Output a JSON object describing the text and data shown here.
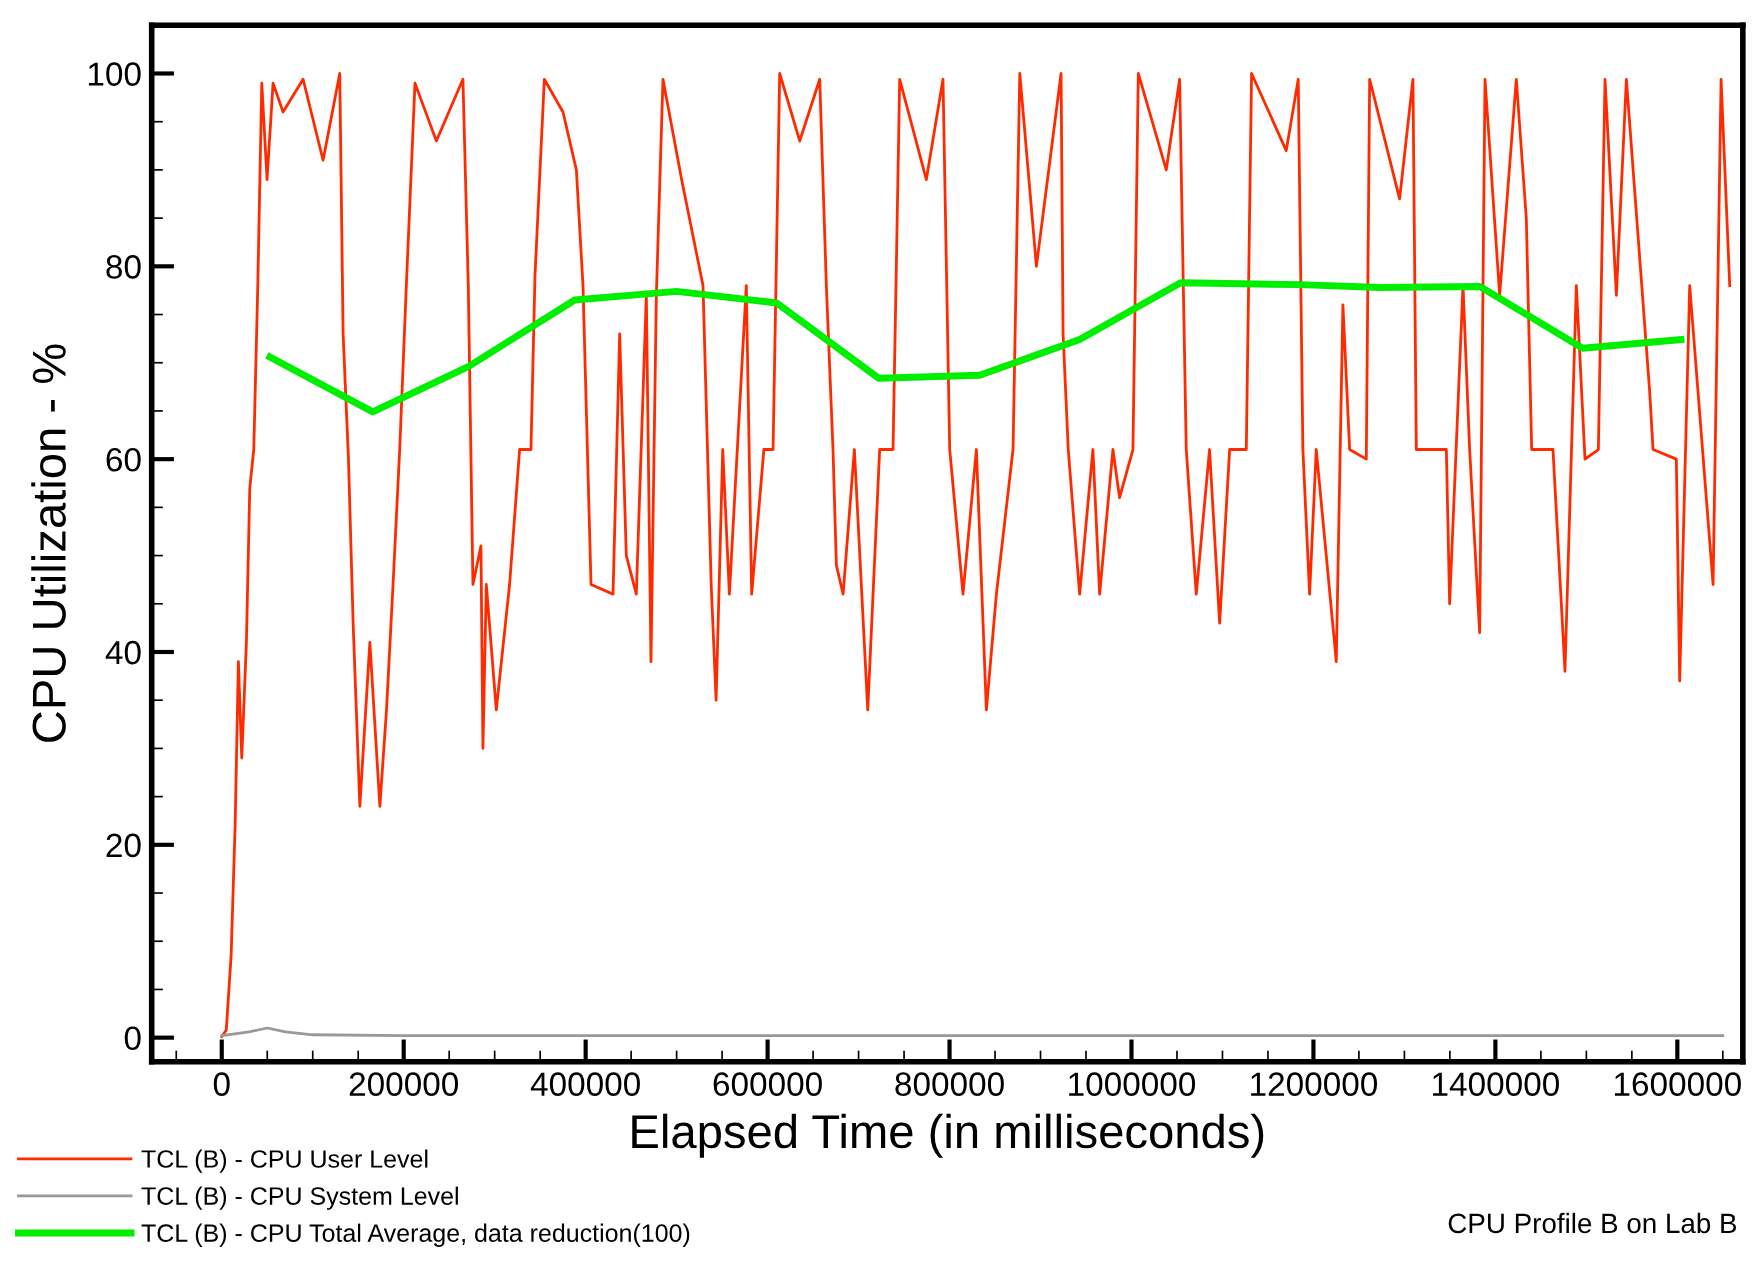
{
  "chart_data": {
    "type": "line",
    "xlabel": "Elapsed Time (in milliseconds)",
    "ylabel": "CPU Utilization - %",
    "annotations": [
      "CPU Profile B on Lab B"
    ],
    "xlim": [
      -77000,
      1672000
    ],
    "xticks": [
      0,
      200000,
      400000,
      600000,
      800000,
      1000000,
      1200000,
      1400000,
      1600000
    ],
    "ylim": [
      -2.5,
      105
    ],
    "yticks": [
      0,
      20,
      40,
      60,
      80,
      100
    ],
    "grid": false,
    "legend": "bottom left",
    "marker": "none",
    "line_style": "solid",
    "series": [
      {
        "name": "TCL (B) - CPU User Level",
        "color": "#ff2a00",
        "x": [
          0,
          5000,
          10300,
          14700,
          18300,
          22000,
          27100,
          30800,
          35200,
          39600,
          44000,
          49800,
          56400,
          67400,
          89400,
          111400,
          129700,
          133400,
          139300,
          144400,
          151800,
          162800,
          173800,
          181100,
          188300,
          195600,
          202900,
          212400,
          235900,
          265100,
          271000,
          276100,
          284900,
          287100,
          290800,
          301800,
          316400,
          327400,
          339900,
          344300,
          354600,
          375100,
          389800,
          397100,
          405900,
          430100,
          437400,
          444700,
          455700,
          466700,
          471800,
          477700,
          485000,
          505500,
          529000,
          538000,
          543400,
          550700,
          558000,
          576600,
          582500,
          595900,
          606000,
          613300,
          635300,
          657300,
          664600,
          671900,
          675600,
          683000,
          695400,
          710100,
          723200,
          737900,
          745200,
          774500,
          792800,
          800200,
          814800,
          829500,
          840500,
          851500,
          869800,
          877200,
          895500,
          922600,
          924800,
          930500,
          943000,
          957600,
          965000,
          979600,
          986900,
          1001600,
          1007500,
          1038200,
          1052900,
          1060200,
          1071200,
          1085800,
          1096900,
          1107900,
          1126200,
          1132000,
          1170100,
          1183300,
          1188400,
          1195800,
          1203100,
          1225100,
          1232400,
          1239800,
          1258100,
          1261800,
          1294700,
          1309400,
          1313100,
          1346100,
          1349700,
          1364400,
          1371700,
          1382700,
          1388600,
          1404700,
          1423000,
          1434000,
          1439900,
          1463300,
          1476500,
          1489000,
          1498500,
          1513200,
          1520500,
          1533000,
          1544000,
          1569600,
          1573300,
          1598900,
          1602600,
          1613600,
          1639300,
          1648100,
          1657600
        ],
        "values": [
          0.1,
          0.8,
          8.5,
          22,
          39,
          29,
          41,
          57,
          61,
          78,
          99,
          89,
          99,
          96,
          99.4,
          91,
          100,
          73,
          60,
          43,
          24,
          41,
          24,
          34,
          47,
          61,
          78,
          99,
          93,
          99.4,
          78,
          47,
          51,
          30,
          47,
          34,
          47,
          61,
          61,
          79,
          99.4,
          96,
          90,
          78,
          47,
          46,
          73,
          50,
          46,
          77,
          39,
          77,
          99.4,
          89,
          78,
          47,
          35,
          61,
          46,
          78,
          46,
          61,
          61,
          100,
          93,
          99.4,
          78,
          61,
          49,
          46,
          61,
          34,
          61,
          61,
          99.4,
          89,
          99.4,
          61,
          46,
          61,
          34,
          46,
          61,
          100,
          80,
          100,
          73,
          61,
          46,
          61,
          46,
          61,
          56,
          61,
          100,
          90,
          99.4,
          61,
          46,
          61,
          43,
          61,
          61,
          100,
          92,
          99.4,
          61,
          46,
          61,
          39,
          76,
          61,
          60,
          99.4,
          87,
          99.4,
          61,
          61,
          45,
          78,
          61,
          42,
          99.4,
          77,
          99.4,
          85,
          61,
          61,
          38,
          78,
          60,
          61,
          99.4,
          77,
          99.4,
          67,
          61,
          60,
          37,
          78,
          47,
          99.4,
          78
        ]
      },
      {
        "name": "TCL (B) - CPU System Level",
        "color": "#999999",
        "x": [
          0,
          30000,
          50000,
          70000,
          100000,
          200000,
          400000,
          600000,
          800000,
          1000000,
          1200000,
          1400000,
          1650000
        ],
        "values": [
          0.2,
          0.6,
          1.0,
          0.6,
          0.3,
          0.2,
          0.2,
          0.2,
          0.2,
          0.2,
          0.2,
          0.2,
          0.2
        ]
      },
      {
        "name": "TCL (B) - CPU Total Average, data reduction(100)",
        "color": "#00ee00",
        "x": [
          53000,
          166000,
          271000,
          388000,
          500000,
          610000,
          722000,
          833000,
          943000,
          1054000,
          1185000,
          1273000,
          1383000,
          1496000,
          1604000
        ],
        "values": [
          70.6,
          64.9,
          69.6,
          76.5,
          77.4,
          76.2,
          68.4,
          68.7,
          72.4,
          78.3,
          78.1,
          77.8,
          77.9,
          71.5,
          72.4
        ]
      }
    ]
  }
}
